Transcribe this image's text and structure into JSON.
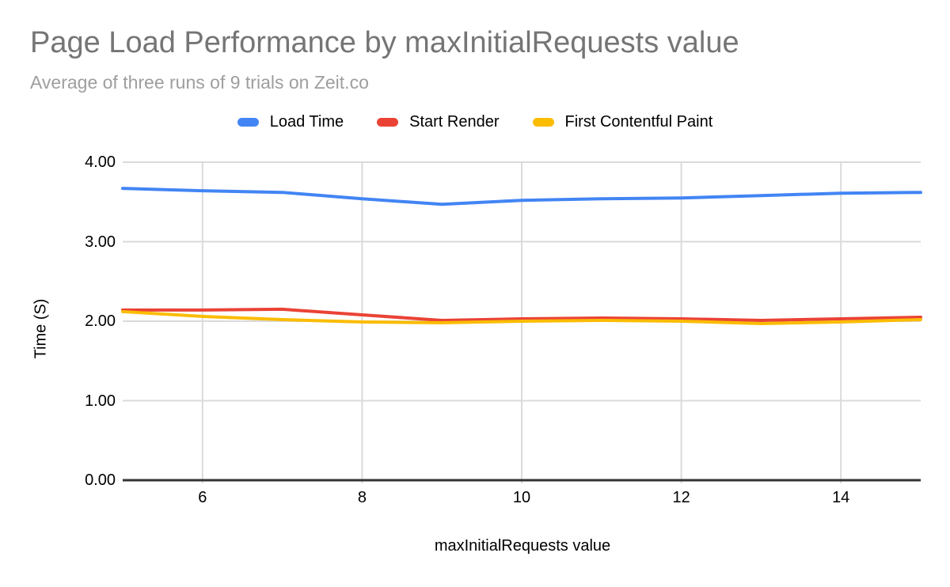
{
  "chart_data": {
    "type": "line",
    "title": "Page Load Performance by maxInitialRequests value",
    "subtitle": "Average of three runs of 9 trials on Zeit.co",
    "xlabel": "maxInitialRequests value",
    "ylabel": "Time (S)",
    "xlim": [
      5,
      15
    ],
    "ylim": [
      0,
      4
    ],
    "grid": true,
    "legend_position": "top",
    "x": [
      5,
      6,
      7,
      8,
      9,
      10,
      11,
      12,
      13,
      14,
      15
    ],
    "x_tick_labels": [
      "6",
      "8",
      "10",
      "12",
      "14"
    ],
    "y_tick_labels": [
      "4.00",
      "3.00",
      "2.00",
      "1.00",
      "0.00"
    ],
    "series": [
      {
        "name": "Load Time",
        "color": "#4285F4",
        "values": [
          3.67,
          3.64,
          3.62,
          3.54,
          3.47,
          3.52,
          3.54,
          3.55,
          3.58,
          3.61,
          3.62
        ]
      },
      {
        "name": "Start Render",
        "color": "#EA4335",
        "values": [
          2.14,
          2.14,
          2.15,
          2.08,
          2.01,
          2.03,
          2.04,
          2.03,
          2.01,
          2.03,
          2.05
        ]
      },
      {
        "name": "First Contentful Paint",
        "color": "#FBBC04",
        "values": [
          2.12,
          2.06,
          2.02,
          1.99,
          1.98,
          2.0,
          2.01,
          2.0,
          1.97,
          1.99,
          2.02
        ]
      }
    ],
    "colors": {
      "gridline": "#dadada",
      "axis_line": "#333333",
      "title_text": "#757575",
      "subtitle_text": "#9e9e9e",
      "label_text": "#000000"
    }
  }
}
